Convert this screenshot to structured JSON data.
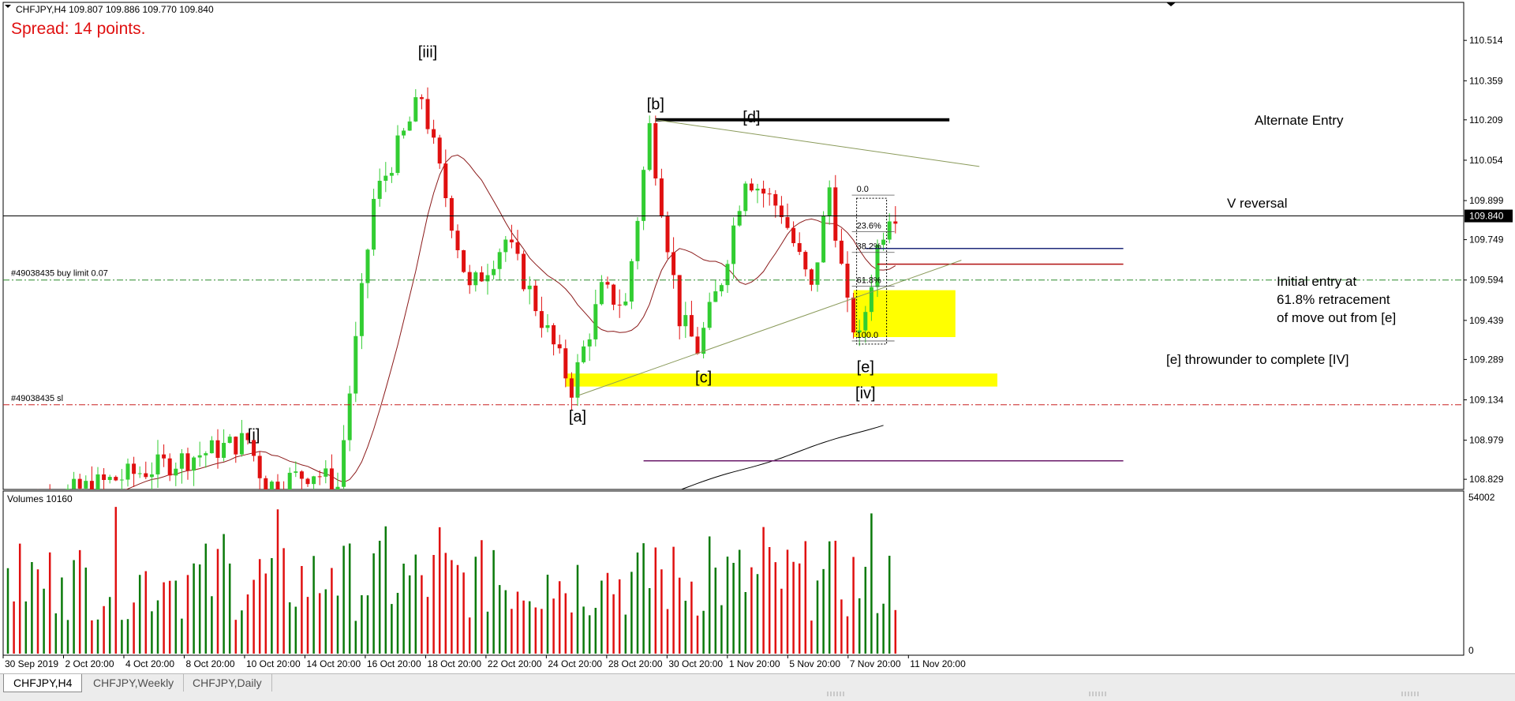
{
  "header": {
    "symbol_info": "CHFJPY,H4  109.807 109.886 109.770 109.840",
    "spread_text": "Spread: 14 points."
  },
  "chart_data": {
    "type": "candlestick",
    "price_axis": {
      "ticks": [
        "110.514",
        "110.359",
        "110.209",
        "110.054",
        "109.899",
        "109.749",
        "109.594",
        "109.439",
        "109.289",
        "109.134",
        "108.979",
        "108.829"
      ],
      "range": [
        108.79,
        110.66
      ],
      "current_price_label": "109.840",
      "current_price": 109.84
    },
    "time_axis": {
      "ticks": [
        "30 Sep 2019",
        "2 Oct 20:00",
        "4 Oct 20:00",
        "8 Oct 20:00",
        "10 Oct 20:00",
        "14 Oct 20:00",
        "16 Oct 20:00",
        "18 Oct 20:00",
        "22 Oct 20:00",
        "24 Oct 20:00",
        "28 Oct 20:00",
        "30 Oct 20:00",
        "1 Nov 20:00",
        "5 Nov 20:00",
        "7 Nov 20:00",
        "11 Nov 20:00"
      ]
    },
    "wave_labels": [
      {
        "text": "[i]",
        "bar": 41,
        "price": 108.98
      },
      {
        "text": "[iii]",
        "bar": 70,
        "price": 110.45
      },
      {
        "text": "[a]",
        "bar": 95,
        "price": 109.05
      },
      {
        "text": "[b]",
        "bar": 108,
        "price": 110.25
      },
      {
        "text": "[c]",
        "bar": 116,
        "price": 109.2
      },
      {
        "text": "[d]",
        "bar": 124,
        "price": 110.2
      },
      {
        "text": "[e]",
        "bar": 143,
        "price": 109.24
      },
      {
        "text": "[iv]",
        "bar": 143,
        "price": 109.14
      }
    ],
    "annotations": [
      {
        "text": "Alternate Entry",
        "price": 110.209
      },
      {
        "text": "V reversal",
        "price": 109.89
      },
      {
        "text": "Initial entry at",
        "price": 109.59
      },
      {
        "text": "61.8% retracement",
        "price": 109.52
      },
      {
        "text": "of move out from [e]",
        "price": 109.45
      },
      {
        "text": "[e] throwunder to complete [IV]",
        "price": 109.29
      }
    ],
    "order_lines": [
      {
        "label": "#49038435 buy limit 0.07",
        "price": 109.594,
        "color": "#2a8a2a"
      },
      {
        "label": "#49038435 sl",
        "price": 109.115,
        "color": "#c82020"
      }
    ],
    "fib_levels": [
      {
        "label": "0.0",
        "price": 109.92
      },
      {
        "label": "23.6%",
        "price": 109.78
      },
      {
        "label": "38.2%",
        "price": 109.7
      },
      {
        "label": "61.8%",
        "price": 109.57
      },
      {
        "label": "100.0",
        "price": 109.36
      }
    ],
    "horizontal_lines": [
      {
        "price": 110.209,
        "color": "#000000",
        "from_bar": 108,
        "to_bar": 157,
        "width": 4
      },
      {
        "price": 109.715,
        "color": "#1f2a7a",
        "from_bar": 143,
        "to_bar": 186,
        "width": 1.5
      },
      {
        "price": 109.655,
        "color": "#b01010",
        "from_bar": 145,
        "to_bar": 186,
        "width": 1.5
      },
      {
        "price": 108.9,
        "color": "#6a1a6a",
        "from_bar": 106,
        "to_bar": 186,
        "width": 1.5
      }
    ],
    "zones": [
      {
        "from_bar": 141,
        "to_bar": 158,
        "high": 109.555,
        "low": 109.375,
        "color": "#ffff00"
      },
      {
        "from_bar": 93,
        "to_bar": 165,
        "high": 109.235,
        "low": 109.185,
        "color": "#ffff00"
      }
    ],
    "trendlines": [
      {
        "from": [
          108,
          110.209
        ],
        "to": [
          162,
          110.03
        ],
        "color": "#8a9a5a"
      },
      {
        "from": [
          95,
          109.15
        ],
        "to": [
          159,
          109.67
        ],
        "color": "#8a9a5a"
      }
    ],
    "volume": {
      "label": "Volumes 10160",
      "axis_top": "54002",
      "axis_bottom": "0",
      "max": 54002
    },
    "bull_color": "#32cd32",
    "bear_color": "#e01010",
    "vol_up_color": "#0a7a0a",
    "vol_down_color": "#e01010"
  },
  "tabs": [
    {
      "label": "CHFJPY,H4",
      "active": true
    },
    {
      "label": "CHFJPY,Weekly",
      "active": false
    },
    {
      "label": "CHFJPY,Daily",
      "active": false
    }
  ]
}
